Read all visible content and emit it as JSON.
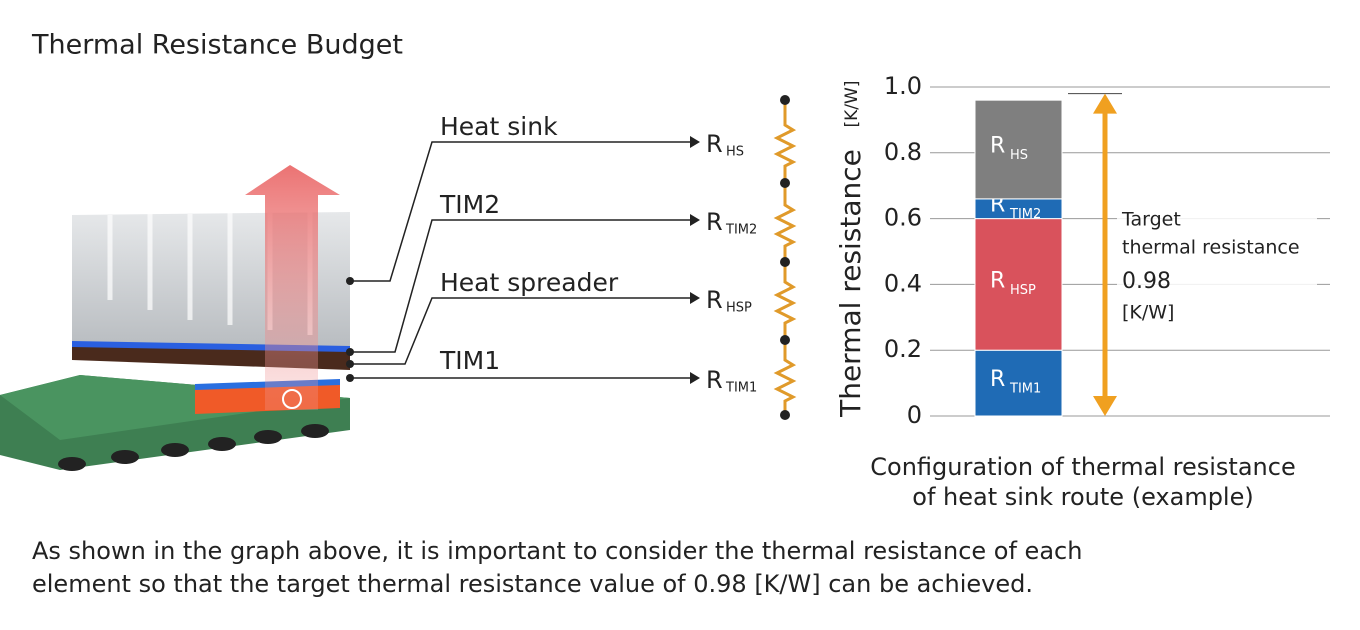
{
  "title": "Thermal Resistance Budget",
  "components": [
    {
      "label": "Heat sink",
      "symbol": "R",
      "subscript": "HS"
    },
    {
      "label": "TIM2",
      "symbol": "R",
      "subscript": "TIM2"
    },
    {
      "label": "Heat spreader",
      "symbol": "R",
      "subscript": "HSP"
    },
    {
      "label": "TIM1",
      "symbol": "R",
      "subscript": "TIM1"
    }
  ],
  "chart_data": {
    "type": "bar",
    "stacked": true,
    "ylabel": "Thermal resistance",
    "ylabel_unit": "[K/W]",
    "categories": [
      null
    ],
    "ylim": [
      0,
      1
    ],
    "yticks": [
      0,
      0.2,
      0.4,
      0.6,
      0.8,
      {
        "value": 1,
        "label": "1.0"
      }
    ],
    "grid": true,
    "series": [
      {
        "symbol": "R",
        "subscript": "TIM1",
        "color": "#1f6bb5",
        "values": [
          0.2
        ]
      },
      {
        "symbol": "R",
        "subscript": "HSP",
        "color": "#d9525c",
        "values": [
          0.4
        ]
      },
      {
        "symbol": "R",
        "subscript": "TIM2",
        "color": "#1f6bb5",
        "values": [
          0.06
        ]
      },
      {
        "symbol": "R",
        "subscript": "HS",
        "color": "#7f7f7f",
        "values": [
          0.3
        ]
      }
    ],
    "target": {
      "lines": [
        "Target",
        "thermal resistance"
      ],
      "value": 0.98,
      "unit": "[K/W]",
      "color": "#f0a020"
    },
    "caption": [
      "Configuration of thermal resistance",
      "of heat sink route (example)"
    ]
  },
  "footer": [
    "As shown in the graph above, it is important to consider the thermal resistance of each",
    "element so that the target thermal resistance value of 0.98 [K/W] can be achieved."
  ]
}
